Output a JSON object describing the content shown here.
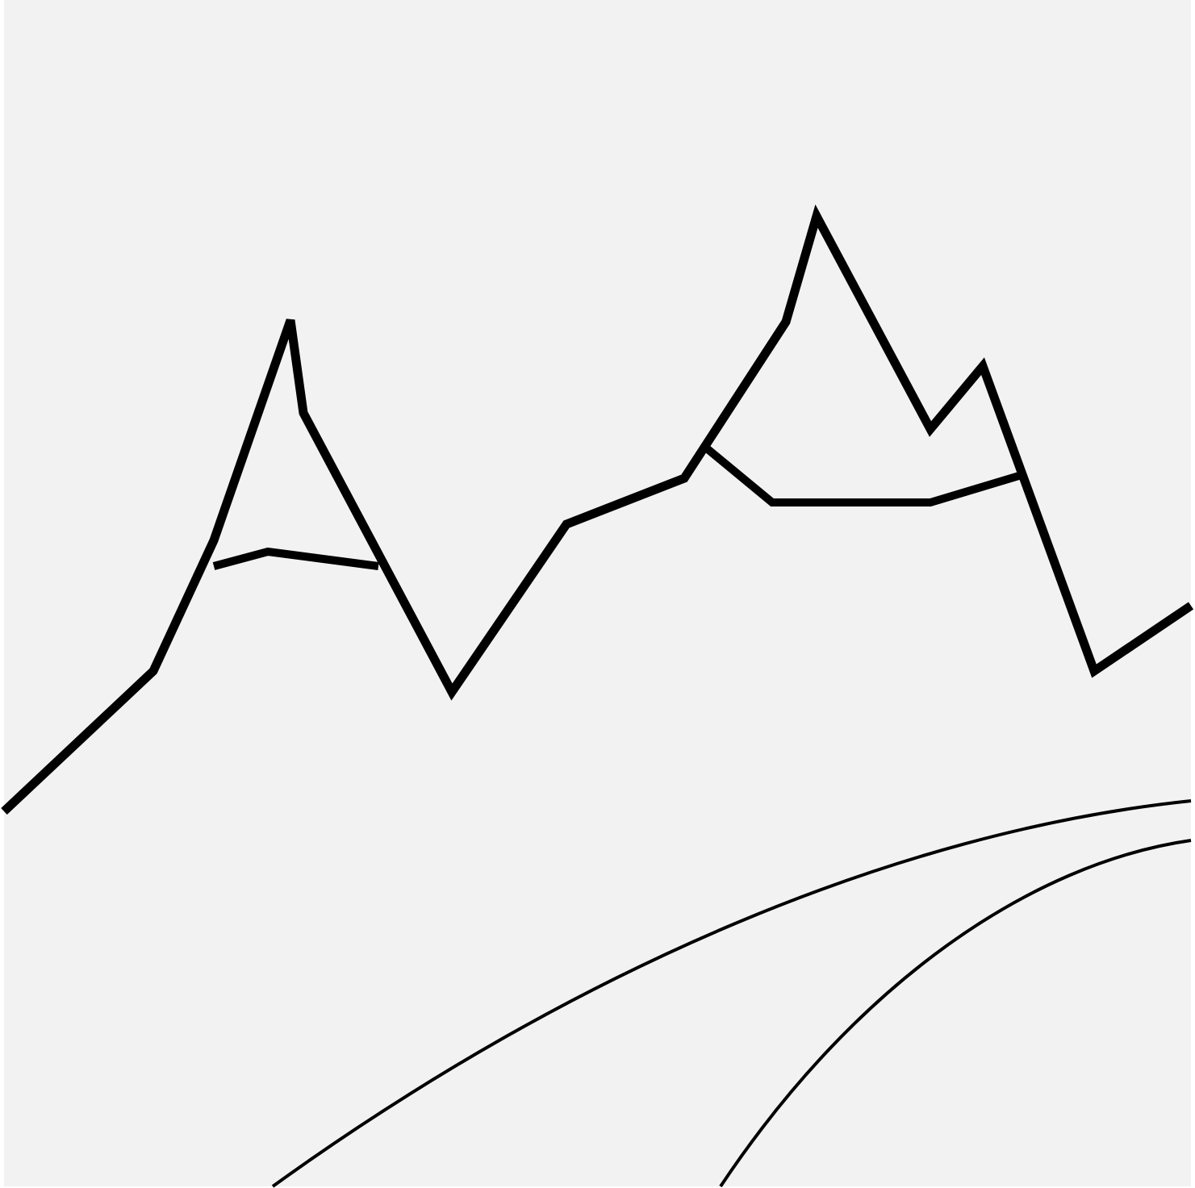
{
  "scene": {
    "description_visible_text": "",
    "colors": {
      "background": "#f2f2f2",
      "border": "#ffffff",
      "stroke": "#000000"
    },
    "icon": "mountain-line-drawing"
  }
}
